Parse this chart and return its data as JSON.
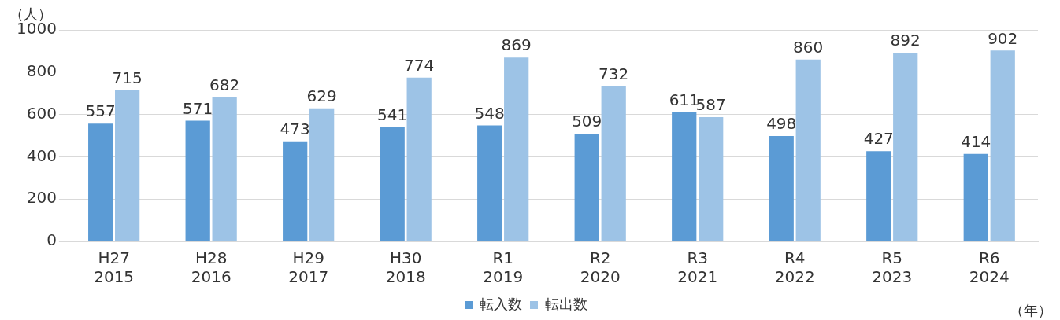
{
  "chart_data": {
    "type": "bar",
    "categories": [
      "H27\n2015",
      "H28\n2016",
      "H29\n2017",
      "H30\n2018",
      "R1\n2019",
      "R2\n2020",
      "R3\n2021",
      "R4\n2022",
      "R5\n2023",
      "R6\n2024"
    ],
    "series": [
      {
        "name": "転入数",
        "color": "#5b9bd5",
        "values": [
          557,
          571,
          473,
          541,
          548,
          509,
          611,
          498,
          427,
          414
        ]
      },
      {
        "name": "転出数",
        "color": "#9dc3e6",
        "values": [
          715,
          682,
          629,
          774,
          869,
          732,
          587,
          860,
          892,
          902
        ]
      }
    ],
    "ylabel": "（人）",
    "xlabel": "（年）",
    "ylim": [
      0,
      1000
    ],
    "yticks": [
      0,
      200,
      400,
      600,
      800,
      1000
    ],
    "grid": "y",
    "legend": "bottom",
    "data_labels": true
  }
}
